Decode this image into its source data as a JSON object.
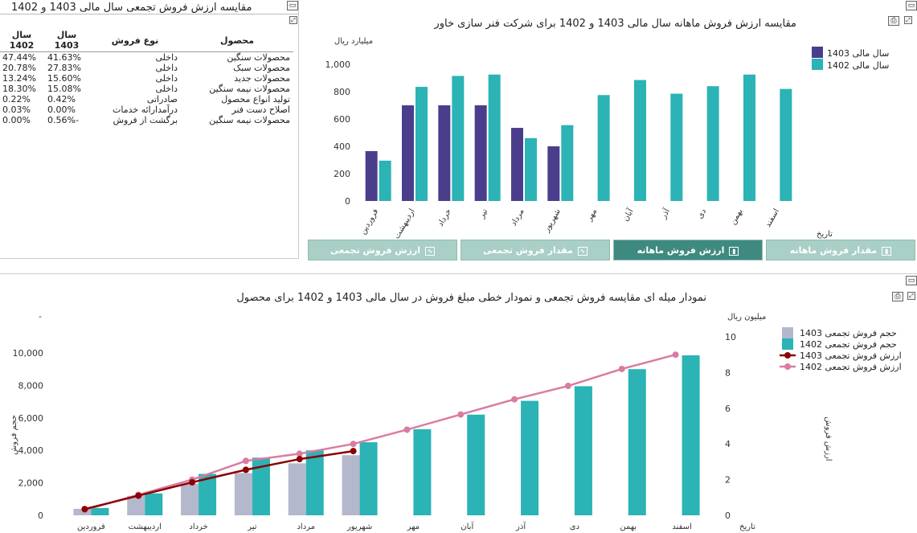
{
  "colors": {
    "c1403": "#4a3e8c",
    "c1402": "#2bb3b5",
    "gray1403": "#b3b8cc",
    "line1403": "#8b0000",
    "line1402": "#d97ca2",
    "tab": "#a9cfc7",
    "tab_active": "#3f8a80"
  },
  "left_panel": {
    "title": "مقایسه ارزش فروش تجمعی سال مالی 1403 و 1402",
    "headers": {
      "product": "محصول",
      "sale_type": "نوع فروش",
      "y1403": "سال 1403",
      "y1402": "سال 1402"
    },
    "rows": [
      {
        "product": "محصولات سنگین",
        "sale_type": "داخلی",
        "y1403": "41.63%",
        "y1402": "47.44%"
      },
      {
        "product": "محصولات سبک",
        "sale_type": "داخلی",
        "y1403": "27.83%",
        "y1402": "20.78%"
      },
      {
        "product": "محصولات جدید",
        "sale_type": "داخلی",
        "y1403": "15.60%",
        "y1402": "13.24%"
      },
      {
        "product": "محصولات نیمه سنگین",
        "sale_type": "داخلی",
        "y1403": "15.08%",
        "y1402": "18.30%"
      },
      {
        "product": "تولید انواع محصول",
        "sale_type": "صادراتی",
        "y1403": "0.42%",
        "y1402": "0.22%"
      },
      {
        "product": "اصلاح دست فنر",
        "sale_type": "درآمدارائه خدمات",
        "y1403": "0.00%",
        "y1402": "0.03%"
      },
      {
        "product": "محصولات نیمه سنگین",
        "sale_type": "برگشت از فروش",
        "y1403": "-0.56%",
        "y1402": "0.00%"
      }
    ]
  },
  "top_chart_panel": {
    "title": "مقایسه ارزش فروش ماهانه سال مالی 1403 و 1402 برای شرکت فنر سازی خاور",
    "tabs": [
      "مقدار فروش ماهانه",
      "ارزش فروش ماهانه",
      "مقدار فروش تجمعی",
      "ارزش فروش تجمعی"
    ],
    "active_tab": "ارزش فروش ماهانه"
  },
  "bottom_chart_panel": {
    "title": "نمودار میله ای مقایسه فروش تجمعی و نمودار خطی مبلغ فروش در سال مالی 1403 و 1402 برای محصول"
  },
  "chart_data": [
    {
      "type": "bar",
      "title": "مقایسه ارزش فروش ماهانه سال مالی 1403 و 1402 برای شرکت فنر سازی خاور",
      "ylabel": "میلیارد ریال",
      "xlabel": "تاریخ",
      "ylim": [
        0,
        1000
      ],
      "yticks": [
        "0",
        "200",
        "400",
        "600",
        "800",
        "1,000"
      ],
      "categories": [
        "فروردین",
        "اردیبهشت",
        "خرداد",
        "تیر",
        "مرداد",
        "شهریور",
        "مهر",
        "آبان",
        "آذر",
        "دی",
        "بهمن",
        "اسفند"
      ],
      "series": [
        {
          "name": "سال مالی 1403",
          "values": [
            365,
            700,
            700,
            700,
            535,
            400,
            null,
            null,
            null,
            null,
            null,
            null
          ]
        },
        {
          "name": "سال مالی 1402",
          "values": [
            295,
            835,
            915,
            925,
            460,
            555,
            775,
            885,
            785,
            840,
            925,
            820
          ]
        }
      ],
      "legend": "top-right",
      "grid": false
    },
    {
      "type": "bar",
      "title": "نمودار میله ای مقایسه فروش تجمعی و نمودار خطی مبلغ فروش در سال مالی 1403 و 1402 برای محصول",
      "ylabel": "حجم فروش",
      "y2label": "ارزش فروش",
      "y2unit": "میلیون ریال",
      "xlabel": "تاریخ",
      "ylim": [
        0,
        10000
      ],
      "y2lim": [
        0,
        9
      ],
      "yticks": [
        "0",
        "2,000",
        "4,000",
        "6,000",
        "8,000",
        "10,000"
      ],
      "y2ticks": [
        "0",
        "2",
        "4",
        "6",
        "8",
        "10"
      ],
      "categories": [
        "فروردین",
        "اردیبهشت",
        "خرداد",
        "تیر",
        "مرداد",
        "شهریور",
        "مهر",
        "آبان",
        "آذر",
        "دی",
        "بهمن",
        "اسفند"
      ],
      "series": [
        {
          "name": "حجم فروش تجمعی 1403",
          "kind": "bar",
          "values": [
            400,
            1200,
            1950,
            2600,
            3200,
            3700,
            null,
            null,
            null,
            null,
            null,
            null
          ]
        },
        {
          "name": "حجم فروش تجمعی 1402",
          "kind": "bar",
          "values": [
            450,
            1350,
            2550,
            3550,
            4000,
            4500,
            5300,
            6200,
            7050,
            7950,
            9000,
            9850
          ]
        },
        {
          "name": "ارزش فروش تجمعی 1403",
          "kind": "line",
          "values": [
            0.35,
            1.1,
            1.85,
            2.55,
            3.15,
            3.6,
            null,
            null,
            null,
            null,
            null,
            null
          ]
        },
        {
          "name": "ارزش فروش تجمعی 1402",
          "kind": "line",
          "values": [
            0.3,
            1.15,
            2.0,
            3.05,
            3.45,
            4.0,
            4.8,
            5.65,
            6.5,
            7.25,
            8.2,
            9.0
          ]
        }
      ],
      "legend": "top-right",
      "grid": false
    }
  ]
}
